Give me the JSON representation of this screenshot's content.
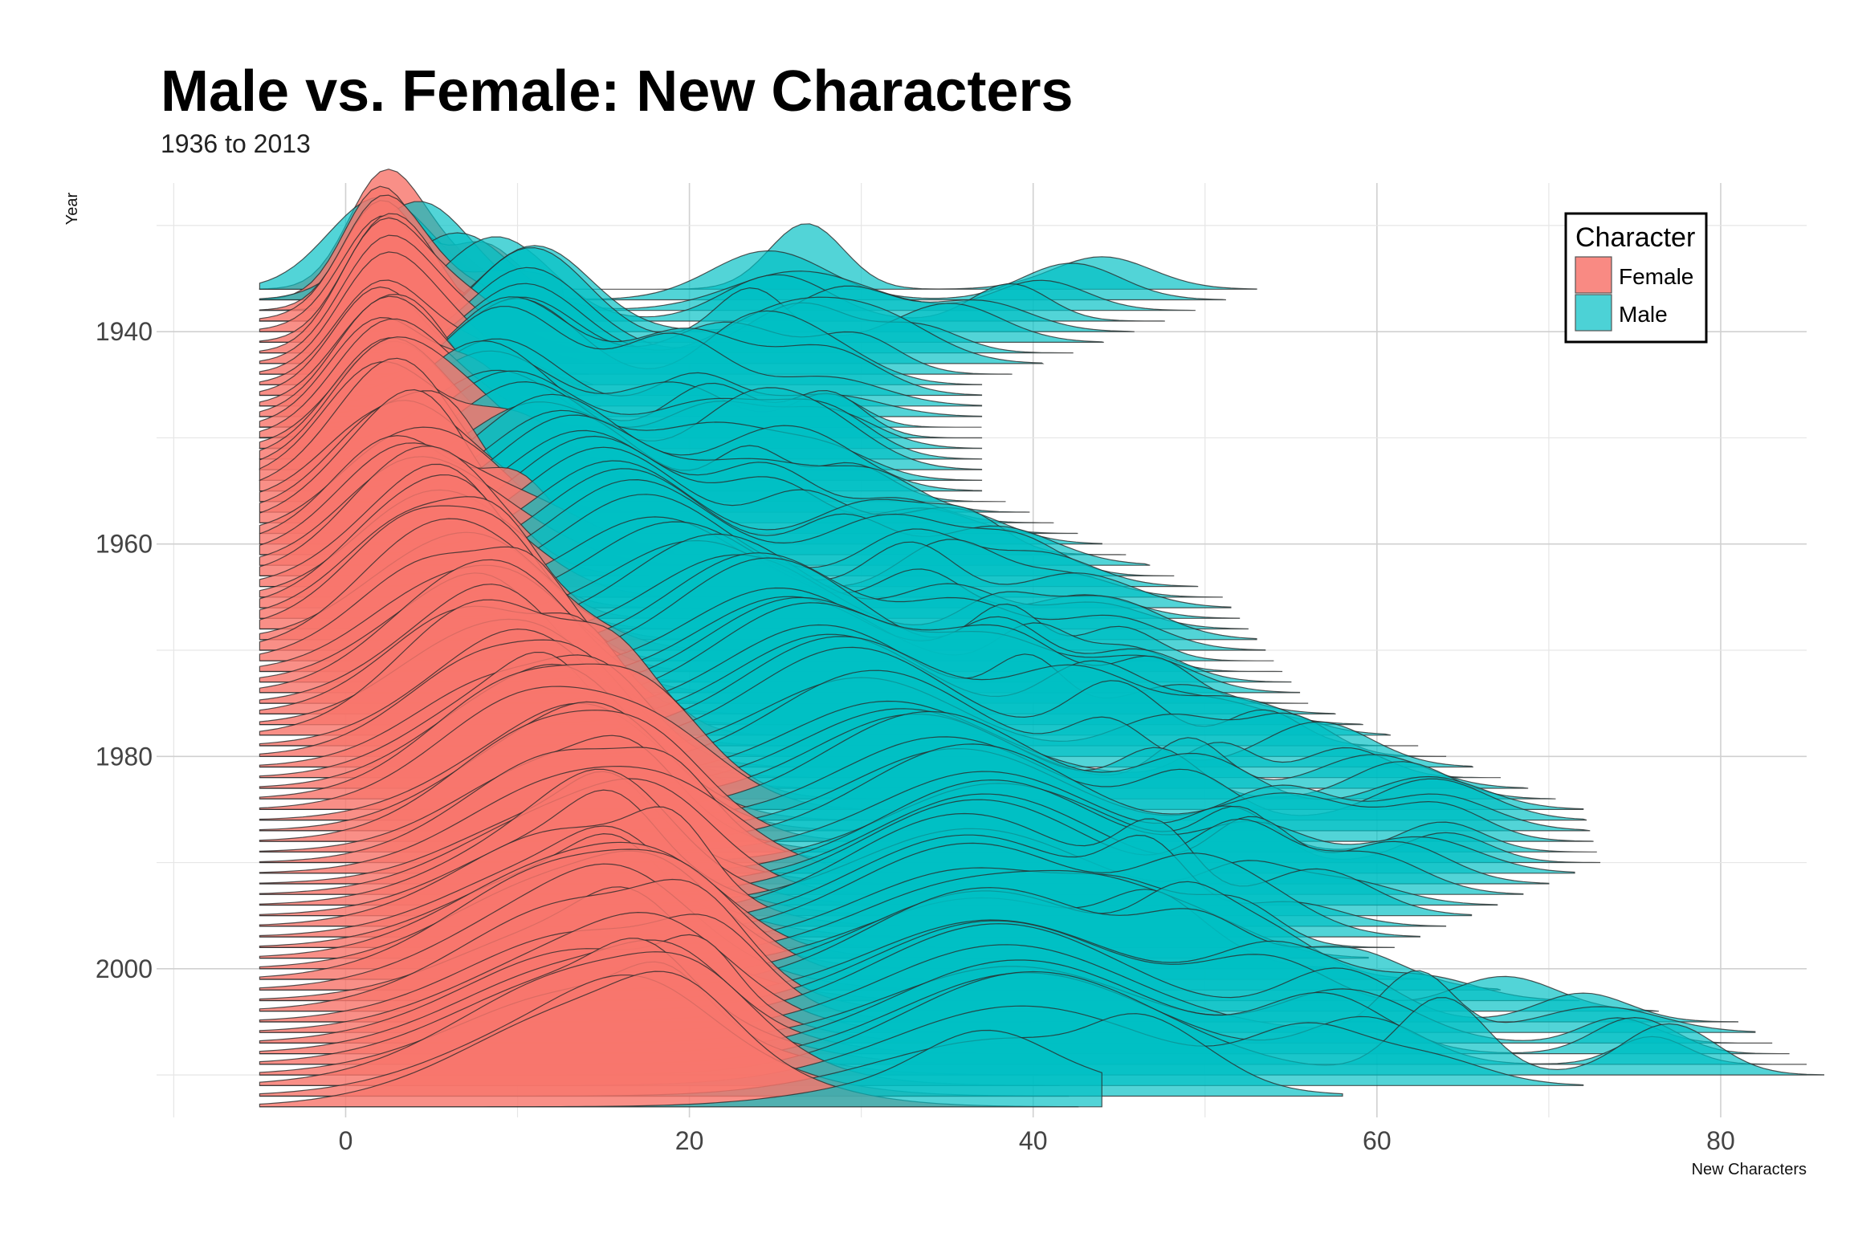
{
  "chart_data": {
    "type": "ridgeline",
    "title": "Male vs. Female: New Characters",
    "subtitle": "1936 to 2013",
    "xlabel": "New Characters",
    "ylabel": "Year",
    "xlim": [
      -11,
      85
    ],
    "ylim": [
      2014,
      1926
    ],
    "x_ticks": [
      0,
      20,
      40,
      60,
      80
    ],
    "y_ticks": [
      1940,
      1960,
      1980,
      2000
    ],
    "grid": true,
    "legend": {
      "title": "Character",
      "position": "top-right",
      "entries": [
        {
          "label": "Female",
          "color": "#F8766D"
        },
        {
          "label": "Male",
          "color": "#00BFC4"
        }
      ]
    },
    "year_range": [
      1936,
      2013
    ],
    "series": [
      {
        "name": "Female",
        "color": "#F8766D",
        "approx_peak_new_characters": [
          [
            1936,
            2
          ],
          [
            1940,
            2
          ],
          [
            1945,
            2
          ],
          [
            1950,
            2
          ],
          [
            1955,
            2
          ],
          [
            1960,
            3
          ],
          [
            1965,
            4
          ],
          [
            1970,
            5
          ],
          [
            1975,
            7
          ],
          [
            1980,
            9
          ],
          [
            1985,
            11
          ],
          [
            1990,
            13
          ],
          [
            1995,
            13
          ],
          [
            2000,
            13
          ],
          [
            2005,
            14
          ],
          [
            2010,
            14
          ],
          [
            2013,
            15
          ]
        ]
      },
      {
        "name": "Male",
        "color": "#00BFC4",
        "approx_peak_new_characters": [
          [
            1936,
            2
          ],
          [
            1940,
            11
          ],
          [
            1945,
            10
          ],
          [
            1950,
            8
          ],
          [
            1955,
            12
          ],
          [
            1960,
            15
          ],
          [
            1965,
            18
          ],
          [
            1970,
            24
          ],
          [
            1975,
            27
          ],
          [
            1980,
            30
          ],
          [
            1985,
            34
          ],
          [
            1990,
            38
          ],
          [
            1995,
            36
          ],
          [
            2000,
            37
          ],
          [
            2005,
            38
          ],
          [
            2010,
            40
          ],
          [
            2013,
            38
          ]
        ],
        "approx_max_new_characters": [
          [
            1936,
            47
          ],
          [
            1945,
            31
          ],
          [
            1955,
            31
          ],
          [
            1965,
            45
          ],
          [
            1975,
            50
          ],
          [
            1985,
            66
          ],
          [
            1990,
            67
          ],
          [
            2000,
            52
          ],
          [
            2005,
            75
          ],
          [
            2010,
            80
          ],
          [
            2013,
            38
          ]
        ]
      }
    ]
  }
}
